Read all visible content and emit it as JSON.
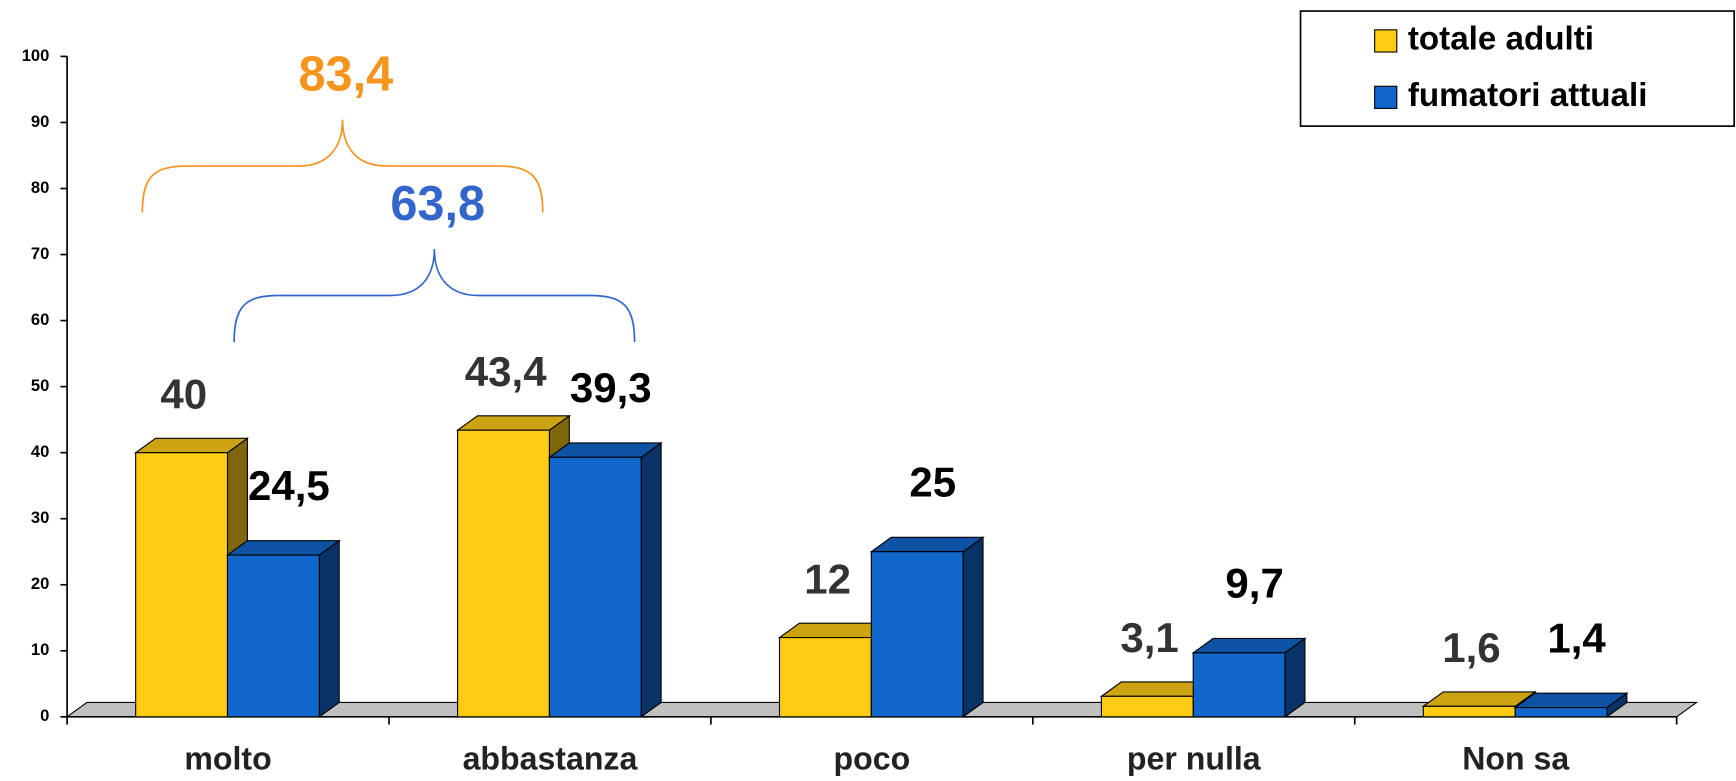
{
  "chart_data": {
    "type": "bar3d",
    "categories": [
      "molto",
      "abbastanza",
      "poco",
      "per nulla",
      "Non sa"
    ],
    "series": [
      {
        "name": "totale adulti",
        "color": "#ffcc14",
        "values": [
          40,
          43.4,
          12,
          3.1,
          1.6
        ],
        "value_labels": [
          "40",
          "43,4",
          "12",
          "3,1",
          "1,6"
        ]
      },
      {
        "name": "fumatori attuali",
        "color": "#1166cc",
        "values": [
          24.5,
          39.3,
          25,
          9.7,
          1.4
        ],
        "value_labels": [
          "24,5",
          "39,3",
          "25",
          "9,7",
          "1,4"
        ]
      }
    ],
    "ylim": [
      0,
      100
    ],
    "yticks": [
      0,
      10,
      20,
      30,
      40,
      50,
      60,
      70,
      80,
      90,
      100
    ],
    "legend": "top-right",
    "annotations": [
      {
        "label": "83,4",
        "value": 83.4,
        "color": "#f7941d"
      },
      {
        "label": "63,8",
        "value": 63.8,
        "color": "#3366cc"
      }
    ]
  }
}
